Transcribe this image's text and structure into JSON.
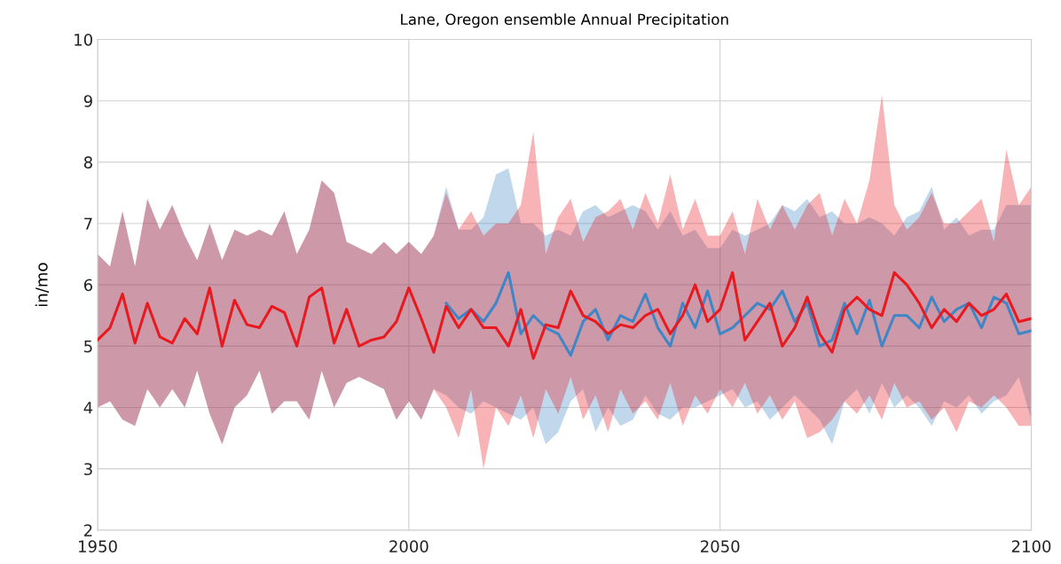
{
  "chart_data": {
    "type": "line",
    "title": "Lane, Oregon ensemble Annual Precipitation",
    "ylabel": "in/mo",
    "x": [
      1950,
      1952,
      1954,
      1956,
      1958,
      1960,
      1962,
      1964,
      1966,
      1968,
      1970,
      1972,
      1974,
      1976,
      1978,
      1980,
      1982,
      1984,
      1986,
      1988,
      1990,
      1992,
      1994,
      1996,
      1998,
      2000,
      2002,
      2004,
      2006,
      2008,
      2010,
      2012,
      2014,
      2016,
      2018,
      2020,
      2022,
      2024,
      2026,
      2028,
      2030,
      2032,
      2034,
      2036,
      2038,
      2040,
      2042,
      2044,
      2046,
      2048,
      2050,
      2052,
      2054,
      2056,
      2058,
      2060,
      2062,
      2064,
      2066,
      2068,
      2070,
      2072,
      2074,
      2076,
      2078,
      2080,
      2082,
      2084,
      2086,
      2088,
      2090,
      2092,
      2094,
      2096,
      2098,
      2100
    ],
    "series": [
      {
        "color": "#3f86c6",
        "values": [
          null,
          null,
          null,
          null,
          null,
          null,
          null,
          null,
          null,
          null,
          null,
          null,
          null,
          null,
          null,
          null,
          null,
          null,
          null,
          null,
          null,
          null,
          null,
          null,
          null,
          null,
          null,
          null,
          5.7,
          5.45,
          5.6,
          5.4,
          5.7,
          6.2,
          5.2,
          5.5,
          5.3,
          5.2,
          4.85,
          5.4,
          5.6,
          5.1,
          5.5,
          5.4,
          5.85,
          5.3,
          5.0,
          5.7,
          5.3,
          5.9,
          5.2,
          5.3,
          5.5,
          5.7,
          5.6,
          5.9,
          5.4,
          5.7,
          5.0,
          5.1,
          5.7,
          5.2,
          5.75,
          5.0,
          5.5,
          5.5,
          5.3,
          5.8,
          5.4,
          5.6,
          5.7,
          5.3,
          5.8,
          5.7,
          5.2,
          5.25
        ],
        "upper": [
          6.5,
          6.3,
          7.2,
          6.3,
          7.4,
          6.9,
          7.3,
          6.8,
          6.4,
          7.0,
          6.4,
          6.9,
          6.8,
          6.9,
          6.8,
          7.2,
          6.5,
          6.9,
          7.7,
          7.5,
          6.7,
          6.6,
          6.5,
          6.7,
          6.5,
          6.7,
          6.5,
          6.8,
          7.6,
          6.9,
          6.9,
          7.1,
          7.8,
          7.9,
          7.0,
          7.0,
          6.8,
          6.9,
          6.8,
          7.2,
          7.3,
          7.1,
          7.2,
          7.3,
          7.2,
          6.9,
          7.2,
          6.8,
          6.9,
          6.6,
          6.6,
          6.9,
          6.8,
          6.9,
          7.0,
          7.3,
          7.2,
          7.4,
          7.1,
          7.2,
          7.0,
          7.0,
          7.1,
          7.0,
          6.8,
          7.1,
          7.2,
          7.6,
          6.9,
          7.1,
          6.8,
          6.9,
          6.9,
          7.3,
          7.3,
          7.3
        ],
        "lower": [
          4.0,
          4.1,
          3.8,
          3.7,
          4.3,
          4.0,
          4.3,
          4.0,
          4.6,
          3.9,
          3.4,
          4.0,
          4.2,
          4.6,
          3.9,
          4.1,
          4.1,
          3.8,
          4.6,
          4.0,
          4.4,
          4.5,
          4.4,
          4.3,
          3.8,
          4.1,
          3.8,
          4.3,
          4.2,
          4.0,
          3.9,
          4.1,
          4.0,
          3.9,
          3.8,
          4.0,
          3.4,
          3.6,
          4.1,
          4.3,
          3.6,
          4.0,
          3.7,
          3.8,
          4.2,
          3.9,
          3.8,
          4.0,
          4.0,
          4.1,
          4.2,
          4.3,
          4.0,
          4.1,
          3.8,
          4.0,
          4.2,
          4.0,
          3.8,
          3.4,
          4.1,
          4.3,
          3.9,
          4.4,
          4.0,
          4.2,
          4.0,
          3.7,
          4.1,
          4.0,
          4.2,
          3.9,
          4.1,
          4.2,
          4.5,
          3.8
        ]
      },
      {
        "color": "#e8191f",
        "values": [
          5.1,
          5.3,
          5.85,
          5.05,
          5.7,
          5.15,
          5.05,
          5.45,
          5.2,
          5.95,
          5.0,
          5.75,
          5.35,
          5.3,
          5.65,
          5.55,
          5.0,
          5.8,
          5.95,
          5.05,
          5.6,
          5.0,
          5.1,
          5.15,
          5.4,
          5.95,
          5.45,
          4.9,
          5.65,
          5.3,
          5.6,
          5.3,
          5.3,
          5.0,
          5.6,
          4.8,
          5.35,
          5.3,
          5.9,
          5.5,
          5.4,
          5.2,
          5.35,
          5.3,
          5.5,
          5.6,
          5.2,
          5.5,
          6.0,
          5.4,
          5.6,
          6.2,
          5.1,
          5.4,
          5.7,
          5.0,
          5.3,
          5.8,
          5.2,
          4.9,
          5.6,
          5.8,
          5.6,
          5.5,
          6.2,
          6.0,
          5.7,
          5.3,
          5.6,
          5.4,
          5.7,
          5.5,
          5.6,
          5.85,
          5.4,
          5.45
        ],
        "upper": [
          6.5,
          6.3,
          7.2,
          6.3,
          7.4,
          6.9,
          7.3,
          6.8,
          6.4,
          7.0,
          6.4,
          6.9,
          6.8,
          6.9,
          6.8,
          7.2,
          6.5,
          6.9,
          7.7,
          7.5,
          6.7,
          6.6,
          6.5,
          6.7,
          6.5,
          6.7,
          6.5,
          6.8,
          7.5,
          6.9,
          7.2,
          6.8,
          7.0,
          7.0,
          7.3,
          8.5,
          6.5,
          7.1,
          7.4,
          6.7,
          7.1,
          7.2,
          7.4,
          6.9,
          7.5,
          7.0,
          7.8,
          6.9,
          7.4,
          6.8,
          6.8,
          7.2,
          6.5,
          7.4,
          6.9,
          7.3,
          6.9,
          7.3,
          7.5,
          6.8,
          7.4,
          7.0,
          7.7,
          9.1,
          7.3,
          6.9,
          7.1,
          7.5,
          7.0,
          7.0,
          7.2,
          7.4,
          6.7,
          8.2,
          7.3,
          7.6
        ],
        "lower": [
          4.0,
          4.1,
          3.8,
          3.7,
          4.3,
          4.0,
          4.3,
          4.0,
          4.6,
          3.9,
          3.4,
          4.0,
          4.2,
          4.6,
          3.9,
          4.1,
          4.1,
          3.8,
          4.6,
          4.0,
          4.4,
          4.5,
          4.4,
          4.3,
          3.8,
          4.1,
          3.8,
          4.3,
          4.0,
          3.5,
          4.3,
          3.0,
          4.0,
          3.7,
          4.2,
          3.5,
          4.3,
          3.9,
          4.5,
          3.8,
          4.2,
          3.6,
          4.3,
          3.9,
          4.1,
          3.8,
          4.4,
          3.7,
          4.2,
          3.9,
          4.3,
          4.0,
          4.4,
          3.9,
          4.2,
          3.8,
          4.1,
          3.5,
          3.6,
          3.8,
          4.1,
          3.9,
          4.2,
          3.8,
          4.4,
          4.0,
          4.1,
          3.8,
          4.0,
          3.6,
          4.1,
          4.0,
          4.2,
          4.0,
          3.7,
          3.7
        ]
      }
    ],
    "xlim": [
      1950,
      2100
    ],
    "xticks": [
      1950,
      2000,
      2050,
      2100
    ],
    "ylim": [
      2,
      10
    ],
    "yticks": [
      2,
      3,
      4,
      5,
      6,
      7,
      8,
      9,
      10
    ],
    "grid": true,
    "marker": "none",
    "line_style": "solid"
  }
}
